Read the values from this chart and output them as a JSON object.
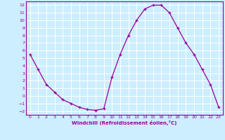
{
  "x": [
    0,
    1,
    2,
    3,
    4,
    5,
    6,
    7,
    8,
    9,
    10,
    11,
    12,
    13,
    14,
    15,
    16,
    17,
    18,
    19,
    20,
    21,
    22,
    23
  ],
  "y": [
    5.5,
    3.5,
    1.5,
    0.5,
    -0.5,
    -1.0,
    -1.5,
    -1.8,
    -1.9,
    -1.7,
    2.5,
    5.5,
    8.0,
    10.0,
    11.5,
    12.0,
    12.0,
    11.0,
    9.0,
    7.0,
    5.5,
    3.5,
    1.5,
    -1.5
  ],
  "line_color": "#990099",
  "marker": "+",
  "marker_size": 3,
  "xlabel": "Windchill (Refroidissement éolien,°C)",
  "ylabel": "",
  "title": "",
  "bg_color": "#cceeff",
  "grid_color": "#ffffff",
  "tick_color": "#990099",
  "label_color": "#990099",
  "xlim": [
    -0.5,
    23.5
  ],
  "ylim": [
    -2.5,
    12.5
  ],
  "yticks": [
    -2,
    -1,
    0,
    1,
    2,
    3,
    4,
    5,
    6,
    7,
    8,
    9,
    10,
    11,
    12
  ],
  "xticks": [
    0,
    1,
    2,
    3,
    4,
    5,
    6,
    7,
    8,
    9,
    10,
    11,
    12,
    13,
    14,
    15,
    16,
    17,
    18,
    19,
    20,
    21,
    22,
    23
  ]
}
